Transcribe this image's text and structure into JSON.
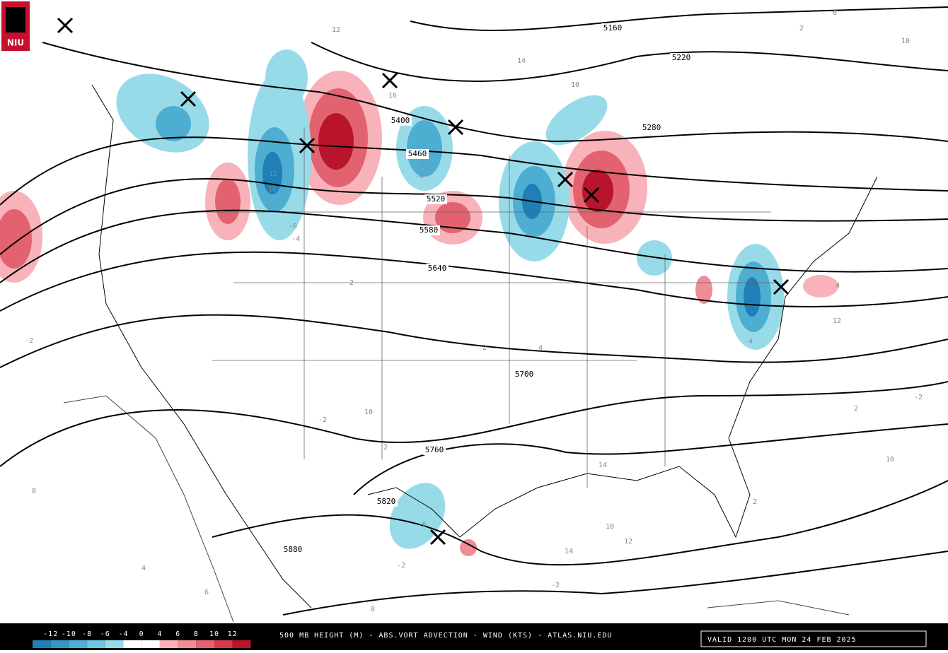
{
  "logo": "NIU",
  "footer": {
    "title": "500 MB HEIGHT (M) - ABS.VORT ADVECTION - WIND (KTS) - ATLAS.NIU.EDU",
    "valid": "VALID 1200 UTC MON 24 FEB 2025"
  },
  "colorbar": {
    "ticks": [
      -12,
      -10,
      -8,
      -6,
      -4,
      0,
      4,
      6,
      8,
      10,
      12
    ],
    "colors": [
      "#1f7fb6",
      "#3596c4",
      "#4eaed2",
      "#6fc6e0",
      "#97dbe9",
      "#ffffff",
      "#ffffff",
      "#f7b3b9",
      "#ef8c95",
      "#e2636f",
      "#d03c4b",
      "#b8142b"
    ]
  },
  "height_labels": [
    5160,
    5220,
    5280,
    5400,
    5460,
    5520,
    5580,
    5640,
    5700,
    5760,
    5820,
    5880
  ],
  "vort_labels": [
    -12,
    10,
    -8,
    -6,
    -6,
    -6,
    -4,
    -4,
    2,
    6,
    10,
    12,
    16,
    14,
    10,
    12,
    10,
    14,
    10,
    12,
    14,
    -2,
    -2,
    8,
    4,
    6,
    8,
    -2,
    2,
    -2,
    2,
    4,
    2,
    2,
    4,
    2,
    10,
    -2
  ]
}
